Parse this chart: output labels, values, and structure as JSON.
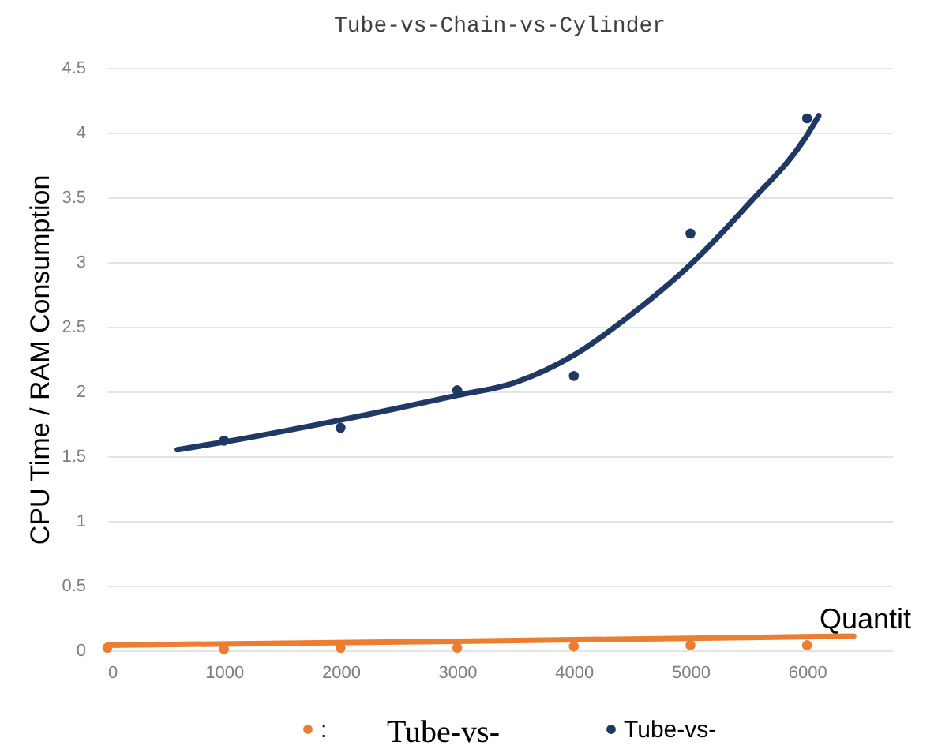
{
  "chart_data": {
    "type": "scatter",
    "title": "Tube-vs-Chain-vs-Cylinder",
    "xlabel": "Quantit",
    "ylabel": "CPU Time / RAM Consumption",
    "xlim": [
      0,
      6730
    ],
    "xticks": [
      0,
      1000,
      2000,
      3000,
      4000,
      5000,
      6000
    ],
    "ylim": [
      0,
      4.5
    ],
    "yticks": [
      0,
      0.5,
      1,
      1.5,
      2,
      2.5,
      3,
      3.5,
      4,
      4.5
    ],
    "grid": "y",
    "legend": "bottom",
    "annotations": [
      "Tube-vs-"
    ],
    "series": [
      {
        "name": ":",
        "marker": "circle",
        "color": "#ed7d31",
        "x": [
          0,
          1000,
          2000,
          3000,
          4000,
          5000,
          6000
        ],
        "values": [
          0.02,
          0.01,
          0.02,
          0.02,
          0.03,
          0.04,
          0.04
        ]
      },
      {
        "name": "Tube-vs-",
        "marker": "circle",
        "color": "#1f3864",
        "x": [
          1000,
          2000,
          3000,
          4000,
          5000,
          6000
        ],
        "values": [
          1.62,
          1.72,
          2.01,
          2.12,
          3.22,
          4.11
        ]
      },
      {
        "type": "line",
        "marker": "none",
        "line_style": "solid",
        "color": "#ed7d31",
        "x": [
          0,
          3000,
          6400
        ],
        "values": [
          0.04,
          0.07,
          0.11
        ]
      },
      {
        "type": "line",
        "marker": "none",
        "line_style": "solid",
        "color": "#1f3864",
        "x": [
          600,
          1000,
          2000,
          3000,
          3500,
          4000,
          4500,
          5000,
          5500,
          6000,
          6100
        ],
        "values": [
          1.55,
          1.61,
          1.78,
          1.97,
          2.07,
          2.28,
          2.6,
          2.98,
          3.45,
          3.98,
          4.13
        ]
      }
    ]
  }
}
